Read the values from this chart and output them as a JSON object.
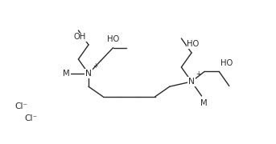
{
  "figsize": [
    3.43,
    1.8
  ],
  "dpi": 100,
  "bg_color": "#ffffff",
  "line_color": "#2a2a2a",
  "lw": 1.0,
  "xlim": [
    0,
    343
  ],
  "ylim": [
    0,
    180
  ]
}
